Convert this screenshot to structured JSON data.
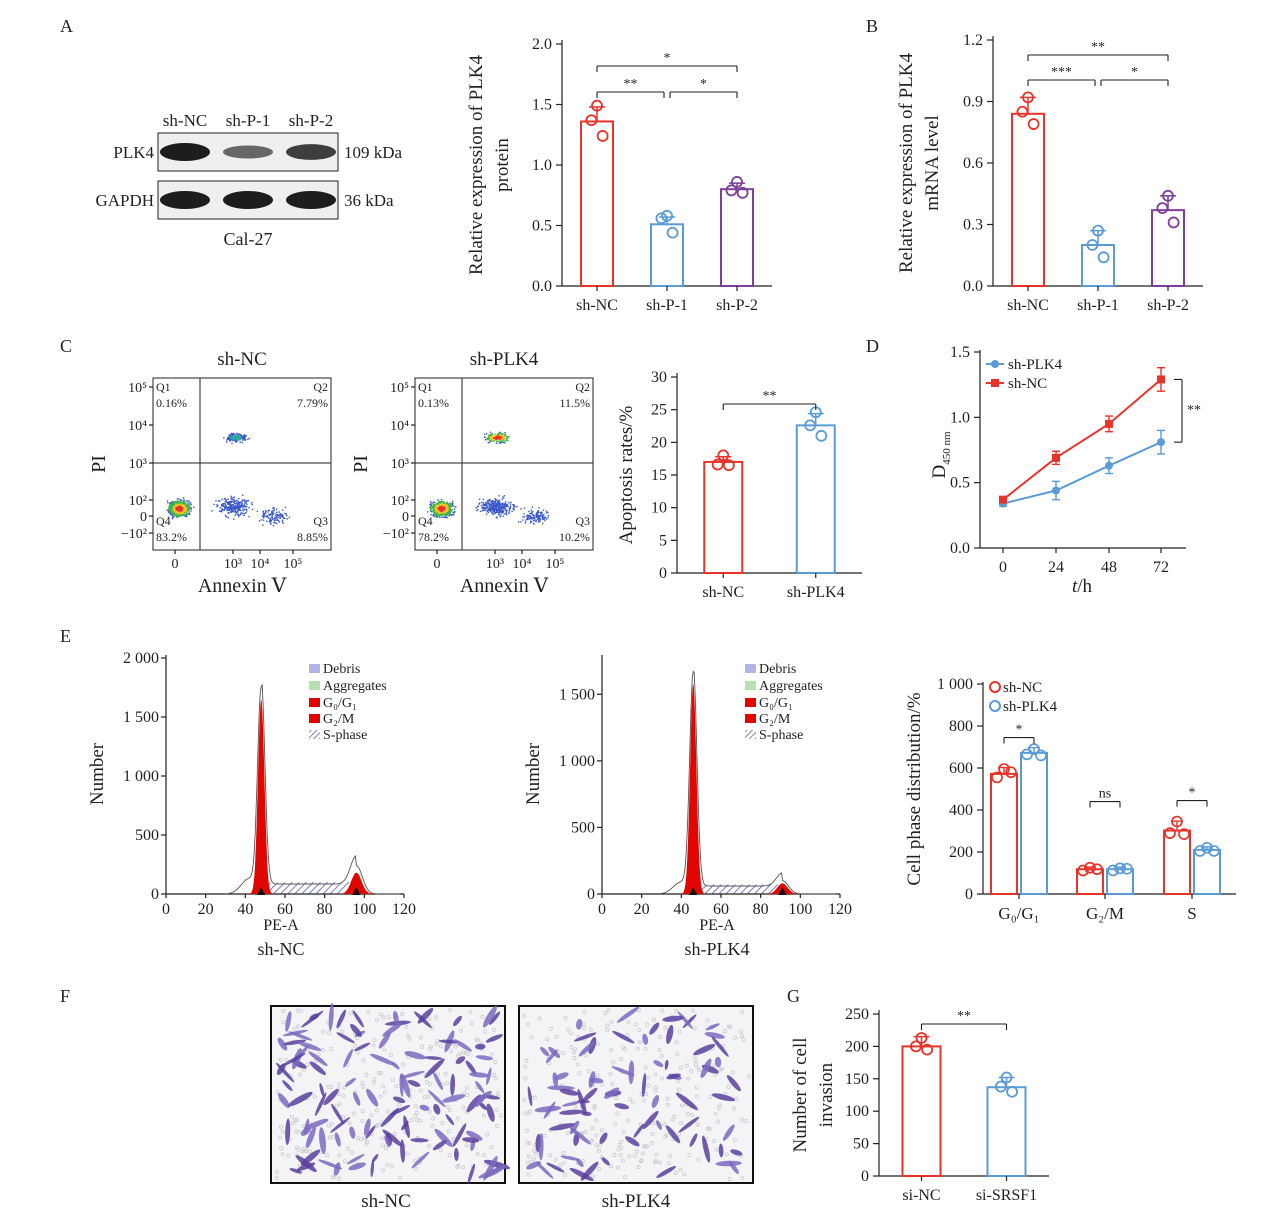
{
  "colors": {
    "red": "#e8332a",
    "blue": "#5b9bd5",
    "purple": "#7e3f98",
    "ink": "#231f20",
    "debris": "#b3b3e6",
    "aggregates": "#b7e0b0",
    "sphase": "#3d4a9e"
  },
  "panel_letters": [
    "A",
    "B",
    "C",
    "D",
    "E",
    "F",
    "G"
  ],
  "western": {
    "lanes": [
      "sh-NC",
      "sh-P-1",
      "sh-P-2"
    ],
    "rows": [
      {
        "label": "PLK4",
        "size": "109 kDa",
        "intensity": [
          1.0,
          0.45,
          0.75
        ]
      },
      {
        "label": "GAPDH",
        "size": "36 kDa",
        "intensity": [
          1.0,
          1.0,
          1.0
        ]
      }
    ],
    "cell_line": "Cal-27"
  },
  "flow": {
    "titles": [
      "sh-NC",
      "sh-PLK4"
    ],
    "x_label": "Annexin Ⅴ",
    "y_label": "PI",
    "y_ticks": [
      "10⁵",
      "10⁴",
      "10³",
      "10²",
      "0",
      "−10²"
    ],
    "x_ticks": [
      "0",
      "10³",
      "10⁴",
      "10⁵"
    ],
    "quadrants": [
      {
        "q1": "Q1",
        "q1v": "0.16%",
        "q2": "Q2",
        "q2v": "7.79%",
        "q3": "Q3",
        "q3v": "8.85%",
        "q4": "Q4",
        "q4v": "83.2%"
      },
      {
        "q1": "Q1",
        "q1v": "0.13%",
        "q2": "Q2",
        "q2v": "11.5%",
        "q3": "Q3",
        "q3v": "10.2%",
        "q4": "Q4",
        "q4v": "78.2%"
      }
    ]
  },
  "histogram": {
    "legend": [
      "Debris",
      "Aggregates",
      "G₀/G₁",
      "G₂/M",
      "S-phase"
    ],
    "x_label": "PE-A",
    "y_label": "Number",
    "x_ticks": [
      "0",
      "20",
      "40",
      "60",
      "80",
      "100",
      "120"
    ],
    "panels": [
      {
        "caption": "sh-NC",
        "y_ticks": [
          "0",
          "500",
          "1 000",
          "1 500",
          "2 000"
        ],
        "ymax": 2000,
        "g1_peak": 1650,
        "g2_peak": 180
      },
      {
        "caption": "sh-PLK4",
        "y_ticks": [
          "0",
          "500",
          "1 000",
          "1 500"
        ],
        "ymax": 1750,
        "g1_peak": 1580,
        "g2_peak": 80
      }
    ]
  },
  "transwell": {
    "captions": [
      "sh-NC",
      "sh-PLK4"
    ]
  },
  "chart_data": [
    {
      "id": "A",
      "type": "bar",
      "categories": [
        "sh-NC",
        "sh-P-1",
        "sh-P-2"
      ],
      "values": [
        1.36,
        0.51,
        0.8
      ],
      "errors": [
        0.12,
        0.06,
        0.05
      ],
      "points": [
        [
          1.49,
          1.37,
          1.24
        ],
        [
          0.58,
          0.56,
          0.44
        ],
        [
          0.86,
          0.79,
          0.77
        ]
      ],
      "ylabel": "Relative expression of PLK4",
      "ylabel2": "protein",
      "ylim": [
        0,
        2.0
      ],
      "yticks": [
        "0.0",
        "0.5",
        "1.0",
        "1.5",
        "2.0"
      ],
      "sig": [
        {
          "a": 0,
          "b": 2,
          "label": "*"
        },
        {
          "a": 0,
          "b": 1,
          "label": "**"
        },
        {
          "a": 1,
          "b": 2,
          "label": "*"
        }
      ]
    },
    {
      "id": "B",
      "type": "bar",
      "categories": [
        "sh-NC",
        "sh-P-1",
        "sh-P-2"
      ],
      "values": [
        0.84,
        0.2,
        0.37
      ],
      "errors": [
        0.08,
        0.07,
        0.07
      ],
      "points": [
        [
          0.92,
          0.85,
          0.79
        ],
        [
          0.27,
          0.2,
          0.14
        ],
        [
          0.44,
          0.38,
          0.31
        ]
      ],
      "ylabel": "Relative expression of PLK4",
      "ylabel2": "mRNA level",
      "ylim": [
        0,
        1.2
      ],
      "yticks": [
        "0.0",
        "0.3",
        "0.6",
        "0.9",
        "1.2"
      ],
      "sig": [
        {
          "a": 0,
          "b": 2,
          "label": "**"
        },
        {
          "a": 0,
          "b": 1,
          "label": "***"
        },
        {
          "a": 1,
          "b": 2,
          "label": "*"
        }
      ]
    },
    {
      "id": "C",
      "type": "bar",
      "categories": [
        "sh-NC",
        "sh-PLK4"
      ],
      "values": [
        17.0,
        22.6
      ],
      "errors": [
        0.8,
        1.8
      ],
      "points": [
        [
          18.0,
          16.6,
          16.5
        ],
        [
          24.6,
          22.6,
          21.0
        ]
      ],
      "ylabel": "Apoptosis rates/%",
      "ylabel2": "",
      "ylim": [
        0,
        30
      ],
      "yticks": [
        "0",
        "5",
        "10",
        "15",
        "20",
        "25",
        "30"
      ],
      "sig": [
        {
          "a": 0,
          "b": 1,
          "label": "**"
        }
      ]
    },
    {
      "id": "D",
      "type": "line",
      "x": [
        0,
        24,
        48,
        72
      ],
      "series": [
        {
          "name": "sh-PLK4",
          "values": [
            0.34,
            0.44,
            0.63,
            0.81
          ],
          "errors": [
            0.02,
            0.07,
            0.06,
            0.09
          ]
        },
        {
          "name": "sh-NC",
          "values": [
            0.37,
            0.69,
            0.95,
            1.29
          ],
          "errors": [
            0.02,
            0.05,
            0.06,
            0.09
          ]
        }
      ],
      "xlabel": "t/h",
      "ylabel": "D",
      "ylabel_sub": "450 nm",
      "ylim": [
        0,
        1.5
      ],
      "yticks": [
        "0.0",
        "0.5",
        "1.0",
        "1.5"
      ],
      "xticks": [
        "0",
        "24",
        "48",
        "72"
      ],
      "sig": "**"
    },
    {
      "id": "E",
      "type": "bar",
      "categories": [
        "G₀/G₁",
        "G₂/M",
        "S"
      ],
      "series": [
        {
          "name": "sh-NC",
          "values": [
            572,
            118,
            302
          ],
          "errors": [
            30,
            10,
            45
          ],
          "points": [
            [
              595,
              555,
              580
            ],
            [
              125,
              112,
              118
            ],
            [
              345,
              290,
              285
            ]
          ]
        },
        {
          "name": "sh-PLK4",
          "values": [
            672,
            118,
            210
          ],
          "errors": [
            25,
            10,
            15
          ],
          "points": [
            [
              690,
              665,
              660
            ],
            [
              122,
              112,
              120
            ],
            [
              220,
              205,
              205
            ]
          ]
        }
      ],
      "ylabel": "Cell phase distribution/%",
      "ylim": [
        0,
        1000
      ],
      "yticks": [
        "0",
        "200",
        "400",
        "600",
        "800",
        "1 000"
      ],
      "sig": [
        "*",
        "ns",
        "*"
      ]
    },
    {
      "id": "G",
      "type": "bar",
      "categories": [
        "si-NC",
        "si-SRSF1"
      ],
      "values": [
        200,
        137
      ],
      "errors": [
        15,
        15
      ],
      "points": [
        [
          213,
          200,
          195
        ],
        [
          152,
          138,
          130
        ]
      ],
      "ylabel": "Number of cell",
      "ylabel2": "invasion",
      "ylim": [
        0,
        250
      ],
      "yticks": [
        "0",
        "50",
        "100",
        "150",
        "200",
        "250"
      ],
      "sig": [
        {
          "a": 0,
          "b": 1,
          "label": "**"
        }
      ]
    }
  ]
}
